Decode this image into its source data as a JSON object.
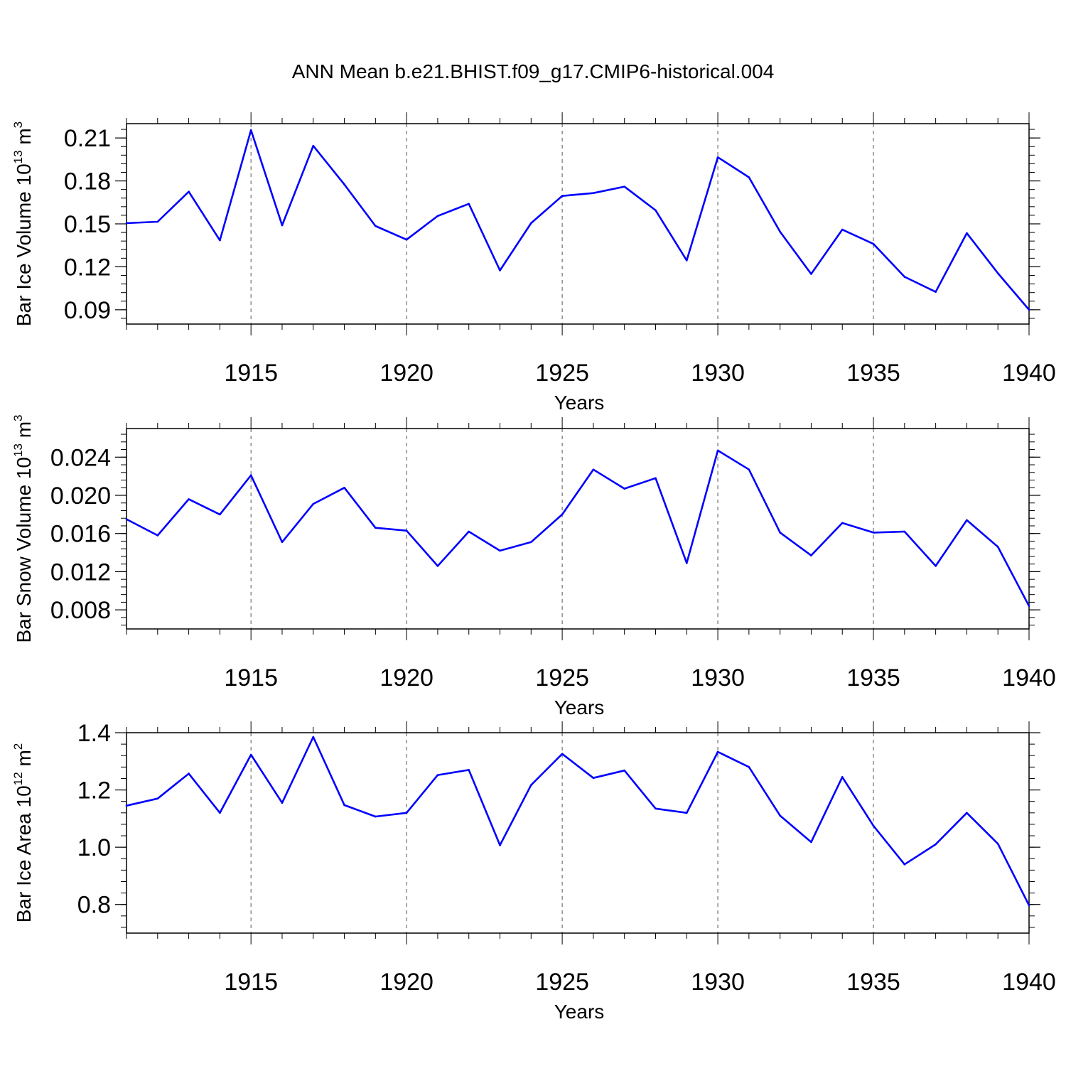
{
  "title": "ANN Mean b.e21.BHIST.f09_g17.CMIP6-historical.004",
  "colors": {
    "line": "#0000ff",
    "axis": "#000000",
    "grid": "#555555"
  },
  "chart_data": [
    {
      "type": "line",
      "ylabel": {
        "main": "Bar Ice Volume 10",
        "exp": "13",
        "unit": " m",
        "unit_exp": "3"
      },
      "xlabel": "Years",
      "xlim": [
        1911,
        1940
      ],
      "ylim": [
        0.08,
        0.22
      ],
      "yticks": [
        0.09,
        0.12,
        0.15,
        0.18,
        0.21
      ],
      "ytick_labels": [
        "0.09",
        "0.12",
        "0.15",
        "0.18",
        "0.21"
      ],
      "xticks": [
        1915,
        1920,
        1925,
        1930,
        1935,
        1940
      ],
      "xtick_labels": [
        "1915",
        "1920",
        "1925",
        "1930",
        "1935",
        "1940"
      ],
      "x": [
        1911,
        1912,
        1913,
        1914,
        1915,
        1916,
        1917,
        1918,
        1919,
        1920,
        1921,
        1922,
        1923,
        1924,
        1925,
        1926,
        1927,
        1928,
        1929,
        1930,
        1931,
        1932,
        1933,
        1934,
        1935,
        1936,
        1937,
        1938,
        1939,
        1940
      ],
      "values": [
        0.1505,
        0.1515,
        0.1725,
        0.1385,
        0.2155,
        0.149,
        0.2045,
        0.1775,
        0.1485,
        0.139,
        0.1555,
        0.164,
        0.1175,
        0.1505,
        0.1695,
        0.1715,
        0.176,
        0.1595,
        0.1245,
        0.1965,
        0.1825,
        0.1445,
        0.115,
        0.146,
        0.136,
        0.113,
        0.1025,
        0.1435,
        0.1155,
        0.09
      ]
    },
    {
      "type": "line",
      "ylabel": {
        "main": "Bar Snow Volume 10",
        "exp": "13",
        "unit": " m",
        "unit_exp": "3"
      },
      "xlabel": "Years",
      "xlim": [
        1911,
        1940
      ],
      "ylim": [
        0.006,
        0.027
      ],
      "yticks": [
        0.008,
        0.012,
        0.016,
        0.02,
        0.024
      ],
      "ytick_labels": [
        "0.008",
        "0.012",
        "0.016",
        "0.020",
        "0.024"
      ],
      "xticks": [
        1915,
        1920,
        1925,
        1930,
        1935,
        1940
      ],
      "xtick_labels": [
        "1915",
        "1920",
        "1925",
        "1930",
        "1935",
        "1940"
      ],
      "x": [
        1911,
        1912,
        1913,
        1914,
        1915,
        1916,
        1917,
        1918,
        1919,
        1920,
        1921,
        1922,
        1923,
        1924,
        1925,
        1926,
        1927,
        1928,
        1929,
        1930,
        1931,
        1932,
        1933,
        1934,
        1935,
        1936,
        1937,
        1938,
        1939,
        1940
      ],
      "values": [
        0.0175,
        0.0158,
        0.0196,
        0.018,
        0.0221,
        0.0151,
        0.0191,
        0.0208,
        0.0166,
        0.0163,
        0.0126,
        0.0162,
        0.0142,
        0.0151,
        0.018,
        0.0227,
        0.0207,
        0.0218,
        0.0129,
        0.0247,
        0.0227,
        0.0161,
        0.0137,
        0.0171,
        0.0161,
        0.0162,
        0.0126,
        0.0174,
        0.0146,
        0.0084
      ]
    },
    {
      "type": "line",
      "ylabel": {
        "main": "Bar Ice Area 10",
        "exp": "12",
        "unit": " m",
        "unit_exp": "2"
      },
      "xlabel": "Years",
      "xlim": [
        1911,
        1940
      ],
      "ylim": [
        0.7,
        1.4
      ],
      "yticks": [
        0.8,
        1.0,
        1.2,
        1.4
      ],
      "ytick_labels": [
        "0.8",
        "1.0",
        "1.2",
        "1.4"
      ],
      "xticks": [
        1915,
        1920,
        1925,
        1930,
        1935,
        1940
      ],
      "xtick_labels": [
        "1915",
        "1920",
        "1925",
        "1930",
        "1935",
        "1940"
      ],
      "x": [
        1911,
        1912,
        1913,
        1914,
        1915,
        1916,
        1917,
        1918,
        1919,
        1920,
        1921,
        1922,
        1923,
        1924,
        1925,
        1926,
        1927,
        1928,
        1929,
        1930,
        1931,
        1932,
        1933,
        1934,
        1935,
        1936,
        1937,
        1938,
        1939,
        1940
      ],
      "values": [
        1.145,
        1.17,
        1.257,
        1.12,
        1.323,
        1.155,
        1.385,
        1.147,
        1.107,
        1.12,
        1.252,
        1.27,
        1.007,
        1.217,
        1.326,
        1.242,
        1.268,
        1.135,
        1.12,
        1.333,
        1.28,
        1.11,
        1.018,
        1.245,
        1.075,
        0.94,
        1.01,
        1.12,
        1.012,
        0.797
      ]
    }
  ]
}
